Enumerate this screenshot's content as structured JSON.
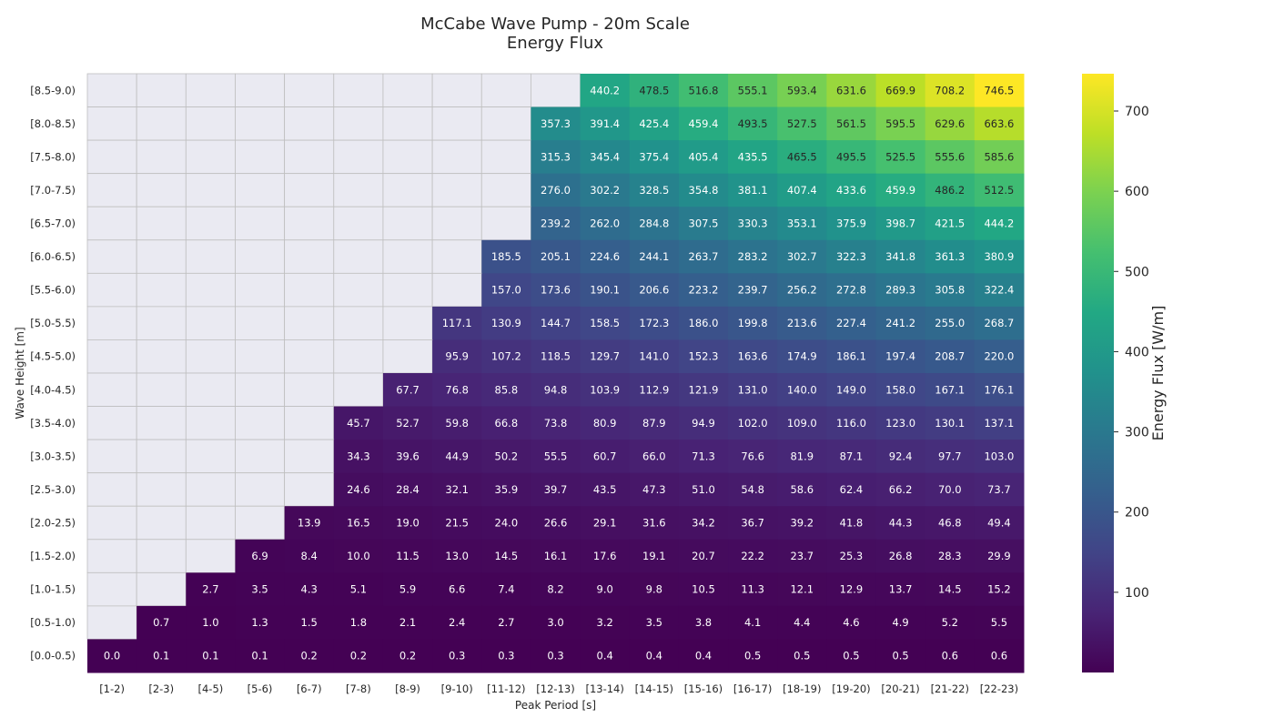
{
  "chart_data": {
    "type": "heatmap",
    "title": "McCabe Wave Pump - 20m Scale",
    "subtitle": "Energy Flux",
    "xlabel": "Peak Period [s]",
    "ylabel": "Wave Height [m]",
    "x_categories": [
      "[1-2)",
      "[2-3)",
      "[4-5)",
      "[5-6)",
      "[6-7)",
      "[7-8)",
      "[8-9)",
      "[9-10)",
      "[11-12)",
      "[12-13)",
      "[13-14)",
      "[14-15)",
      "[15-16)",
      "[16-17)",
      "[18-19)",
      "[19-20)",
      "[20-21)",
      "[21-22)",
      "[22-23)"
    ],
    "y_categories": [
      "[8.5-9.0)",
      "[8.0-8.5)",
      "[7.5-8.0)",
      "[7.0-7.5)",
      "[6.5-7.0)",
      "[6.0-6.5)",
      "[5.5-6.0)",
      "[5.0-5.5)",
      "[4.5-5.0)",
      "[4.0-4.5)",
      "[3.5-4.0)",
      "[3.0-3.5)",
      "[2.5-3.0)",
      "[2.0-2.5)",
      "[1.5-2.0)",
      "[1.0-1.5)",
      "[0.5-1.0)",
      "[0.0-0.5)"
    ],
    "values": [
      [
        null,
        null,
        null,
        null,
        null,
        null,
        null,
        null,
        null,
        null,
        440.2,
        478.5,
        516.8,
        555.1,
        593.4,
        631.6,
        669.9,
        708.2,
        746.5
      ],
      [
        null,
        null,
        null,
        null,
        null,
        null,
        null,
        null,
        null,
        357.3,
        391.4,
        425.4,
        459.4,
        493.5,
        527.5,
        561.5,
        595.5,
        629.6,
        663.6
      ],
      [
        null,
        null,
        null,
        null,
        null,
        null,
        null,
        null,
        null,
        315.3,
        345.4,
        375.4,
        405.4,
        435.5,
        465.5,
        495.5,
        525.5,
        555.6,
        585.6
      ],
      [
        null,
        null,
        null,
        null,
        null,
        null,
        null,
        null,
        null,
        276.0,
        302.2,
        328.5,
        354.8,
        381.1,
        407.4,
        433.6,
        459.9,
        486.2,
        512.5
      ],
      [
        null,
        null,
        null,
        null,
        null,
        null,
        null,
        null,
        null,
        239.2,
        262.0,
        284.8,
        307.5,
        330.3,
        353.1,
        375.9,
        398.7,
        421.5,
        444.2
      ],
      [
        null,
        null,
        null,
        null,
        null,
        null,
        null,
        null,
        185.5,
        205.1,
        224.6,
        244.1,
        263.7,
        283.2,
        302.7,
        322.3,
        341.8,
        361.3,
        380.9
      ],
      [
        null,
        null,
        null,
        null,
        null,
        null,
        null,
        null,
        157.0,
        173.6,
        190.1,
        206.6,
        223.2,
        239.7,
        256.2,
        272.8,
        289.3,
        305.8,
        322.4
      ],
      [
        null,
        null,
        null,
        null,
        null,
        null,
        null,
        117.1,
        130.9,
        144.7,
        158.5,
        172.3,
        186.0,
        199.8,
        213.6,
        227.4,
        241.2,
        255.0,
        268.7
      ],
      [
        null,
        null,
        null,
        null,
        null,
        null,
        null,
        95.9,
        107.2,
        118.5,
        129.7,
        141.0,
        152.3,
        163.6,
        174.9,
        186.1,
        197.4,
        208.7,
        220.0
      ],
      [
        null,
        null,
        null,
        null,
        null,
        null,
        67.7,
        76.8,
        85.8,
        94.8,
        103.9,
        112.9,
        121.9,
        131.0,
        140.0,
        149.0,
        158.0,
        167.1,
        176.1
      ],
      [
        null,
        null,
        null,
        null,
        null,
        45.7,
        52.7,
        59.8,
        66.8,
        73.8,
        80.9,
        87.9,
        94.9,
        102.0,
        109.0,
        116.0,
        123.0,
        130.1,
        137.1
      ],
      [
        null,
        null,
        null,
        null,
        null,
        34.3,
        39.6,
        44.9,
        50.2,
        55.5,
        60.7,
        66.0,
        71.3,
        76.6,
        81.9,
        87.1,
        92.4,
        97.7,
        103.0
      ],
      [
        null,
        null,
        null,
        null,
        null,
        24.6,
        28.4,
        32.1,
        35.9,
        39.7,
        43.5,
        47.3,
        51.0,
        54.8,
        58.6,
        62.4,
        66.2,
        70.0,
        73.7
      ],
      [
        null,
        null,
        null,
        null,
        13.9,
        16.5,
        19.0,
        21.5,
        24.0,
        26.6,
        29.1,
        31.6,
        34.2,
        36.7,
        39.2,
        41.8,
        44.3,
        46.8,
        49.4
      ],
      [
        null,
        null,
        null,
        6.9,
        8.4,
        10.0,
        11.5,
        13.0,
        14.5,
        16.1,
        17.6,
        19.1,
        20.7,
        22.2,
        23.7,
        25.3,
        26.8,
        28.3,
        29.9
      ],
      [
        null,
        null,
        2.7,
        3.5,
        4.3,
        5.1,
        5.9,
        6.6,
        7.4,
        8.2,
        9.0,
        9.8,
        10.5,
        11.3,
        12.1,
        12.9,
        13.7,
        14.5,
        15.2
      ],
      [
        null,
        0.7,
        1.0,
        1.3,
        1.5,
        1.8,
        2.1,
        2.4,
        2.7,
        3.0,
        3.2,
        3.5,
        3.8,
        4.1,
        4.4,
        4.6,
        4.9,
        5.2,
        5.5
      ],
      [
        0.0,
        0.1,
        0.1,
        0.1,
        0.2,
        0.2,
        0.2,
        0.3,
        0.3,
        0.3,
        0.4,
        0.4,
        0.4,
        0.5,
        0.5,
        0.5,
        0.5,
        0.6,
        0.6
      ]
    ],
    "colorbar": {
      "label": "Energy Flux [W/m]",
      "colormap": "viridis",
      "vmin": 0.0,
      "vmax": 746.5,
      "ticks": [
        100,
        200,
        300,
        400,
        500,
        600,
        700
      ]
    },
    "missing_color": "#eaeaf2",
    "grid_color": "#bfbfbf",
    "grid": true
  }
}
